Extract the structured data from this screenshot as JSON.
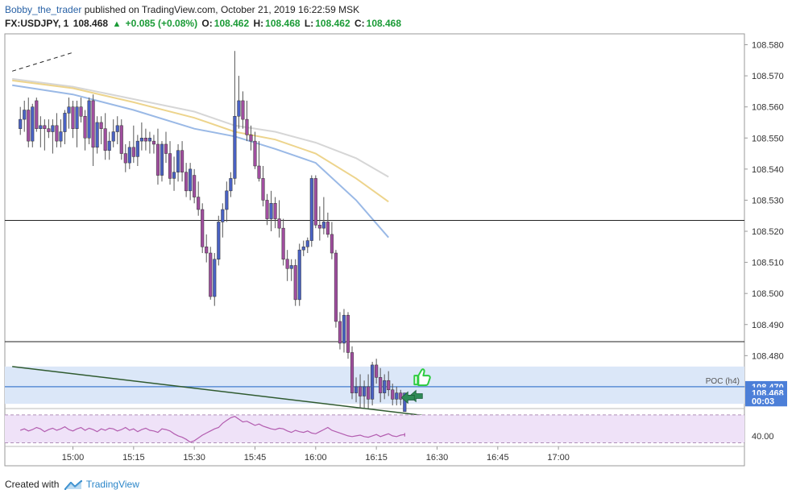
{
  "header": {
    "author": "Bobby_the_trader",
    "published_text": "published on TradingView.com, October 21, 2019 16:22:59 MSK",
    "symbol": "FX:USDJPY, 1",
    "price": "108.468",
    "change": "+0.085 (+0.08%)",
    "o_label": "O:",
    "o_value": "108.462",
    "h_label": "H:",
    "h_value": "108.468",
    "l_label": "L:",
    "l_value": "108.462",
    "c_label": "C:",
    "c_value": "108.468"
  },
  "footer": {
    "created_with": "Created with",
    "brand": "TradingView"
  },
  "colors": {
    "bull": "#4a62c4",
    "bear": "#a04e9f",
    "wick": "#555555",
    "ma_fast": "#9ab9e6",
    "ma_mid": "#edd48c",
    "ma_slow": "#d6d6d6",
    "zone": "#dbe7f8",
    "rsi_band": "#efe2f8",
    "rsi_line": "#b35db0",
    "trendline": "#2f5a2f",
    "price_label_bg": "#4c7fd8",
    "arrow": "#2e8b57",
    "thumb": "#2ecc40"
  },
  "chart_data": {
    "type": "candlestick",
    "price_axis": {
      "ylim": [
        108.4635,
        108.5835
      ],
      "ticks": [
        "108.580",
        "108.570",
        "108.560",
        "108.550",
        "108.540",
        "108.530",
        "108.520",
        "108.510",
        "108.500",
        "108.490",
        "108.480",
        "108.470"
      ]
    },
    "time_axis": {
      "ticks": [
        "15:00",
        "15:15",
        "15:30",
        "15:45",
        "16:00",
        "16:15",
        "16:30",
        "16:45",
        "17:00"
      ],
      "minutes_per_bar": 1
    },
    "candles": [
      {
        "time": "14:47",
        "o": 108.553,
        "h": 108.56,
        "l": 108.551,
        "c": 108.556
      },
      {
        "time": "14:48",
        "o": 108.556,
        "h": 108.562,
        "l": 108.552,
        "c": 108.559
      },
      {
        "time": "14:49",
        "o": 108.559,
        "h": 108.563,
        "l": 108.547,
        "c": 108.549
      },
      {
        "time": "14:50",
        "o": 108.549,
        "h": 108.561,
        "l": 108.547,
        "c": 108.56
      },
      {
        "time": "14:51",
        "o": 108.562,
        "h": 108.563,
        "l": 108.552,
        "c": 108.553
      },
      {
        "time": "14:52",
        "o": 108.553,
        "h": 108.557,
        "l": 108.547,
        "c": 108.554
      },
      {
        "time": "14:53",
        "o": 108.554,
        "h": 108.556,
        "l": 108.546,
        "c": 108.553
      },
      {
        "time": "14:54",
        "o": 108.553,
        "h": 108.556,
        "l": 108.55,
        "c": 108.552
      },
      {
        "time": "14:55",
        "o": 108.552,
        "h": 108.556,
        "l": 108.545,
        "c": 108.554
      },
      {
        "time": "14:56",
        "o": 108.554,
        "h": 108.558,
        "l": 108.547,
        "c": 108.549
      },
      {
        "time": "14:57",
        "o": 108.549,
        "h": 108.556,
        "l": 108.547,
        "c": 108.552
      },
      {
        "time": "14:58",
        "o": 108.552,
        "h": 108.559,
        "l": 108.548,
        "c": 108.558
      },
      {
        "time": "14:59",
        "o": 108.558,
        "h": 108.563,
        "l": 108.553,
        "c": 108.56
      },
      {
        "time": "15:00",
        "o": 108.56,
        "h": 108.562,
        "l": 108.55,
        "c": 108.553
      },
      {
        "time": "15:01",
        "o": 108.553,
        "h": 108.562,
        "l": 108.547,
        "c": 108.56
      },
      {
        "time": "15:02",
        "o": 108.56,
        "h": 108.563,
        "l": 108.555,
        "c": 108.557
      },
      {
        "time": "15:03",
        "o": 108.557,
        "h": 108.559,
        "l": 108.546,
        "c": 108.55
      },
      {
        "time": "15:04",
        "o": 108.55,
        "h": 108.563,
        "l": 108.548,
        "c": 108.562
      },
      {
        "time": "15:05",
        "o": 108.562,
        "h": 108.564,
        "l": 108.541,
        "c": 108.547
      },
      {
        "time": "15:06",
        "o": 108.547,
        "h": 108.557,
        "l": 108.545,
        "c": 108.555
      },
      {
        "time": "15:07",
        "o": 108.555,
        "h": 108.557,
        "l": 108.548,
        "c": 108.553
      },
      {
        "time": "15:08",
        "o": 108.553,
        "h": 108.558,
        "l": 108.543,
        "c": 108.546
      },
      {
        "time": "15:09",
        "o": 108.546,
        "h": 108.552,
        "l": 108.543,
        "c": 108.549
      },
      {
        "time": "15:10",
        "o": 108.549,
        "h": 108.556,
        "l": 108.547,
        "c": 108.552
      },
      {
        "time": "15:11",
        "o": 108.552,
        "h": 108.557,
        "l": 108.548,
        "c": 108.554
      },
      {
        "time": "15:12",
        "o": 108.554,
        "h": 108.556,
        "l": 108.543,
        "c": 108.545
      },
      {
        "time": "15:13",
        "o": 108.545,
        "h": 108.548,
        "l": 108.539,
        "c": 108.542
      },
      {
        "time": "15:14",
        "o": 108.542,
        "h": 108.549,
        "l": 108.54,
        "c": 108.547
      },
      {
        "time": "15:15",
        "o": 108.547,
        "h": 108.554,
        "l": 108.542,
        "c": 108.544
      },
      {
        "time": "15:16",
        "o": 108.544,
        "h": 108.551,
        "l": 108.541,
        "c": 108.549
      },
      {
        "time": "15:17",
        "o": 108.549,
        "h": 108.555,
        "l": 108.546,
        "c": 108.55
      },
      {
        "time": "15:18",
        "o": 108.55,
        "h": 108.553,
        "l": 108.546,
        "c": 108.549
      },
      {
        "time": "15:19",
        "o": 108.549,
        "h": 108.552,
        "l": 108.545,
        "c": 108.55
      },
      {
        "time": "15:20",
        "o": 108.549,
        "h": 108.551,
        "l": 108.545,
        "c": 108.548
      },
      {
        "time": "15:21",
        "o": 108.548,
        "h": 108.553,
        "l": 108.535,
        "c": 108.538
      },
      {
        "time": "15:22",
        "o": 108.538,
        "h": 108.549,
        "l": 108.536,
        "c": 108.548
      },
      {
        "time": "15:23",
        "o": 108.548,
        "h": 108.552,
        "l": 108.542,
        "c": 108.545
      },
      {
        "time": "15:24",
        "o": 108.545,
        "h": 108.549,
        "l": 108.535,
        "c": 108.537
      },
      {
        "time": "15:25",
        "o": 108.537,
        "h": 108.544,
        "l": 108.533,
        "c": 108.539
      },
      {
        "time": "15:26",
        "o": 108.539,
        "h": 108.548,
        "l": 108.536,
        "c": 108.546
      },
      {
        "time": "15:27",
        "o": 108.546,
        "h": 108.549,
        "l": 108.536,
        "c": 108.539
      },
      {
        "time": "15:28",
        "o": 108.539,
        "h": 108.542,
        "l": 108.531,
        "c": 108.533
      },
      {
        "time": "15:29",
        "o": 108.533,
        "h": 108.542,
        "l": 108.53,
        "c": 108.54
      },
      {
        "time": "15:30",
        "o": 108.538,
        "h": 108.54,
        "l": 108.529,
        "c": 108.531
      },
      {
        "time": "15:31",
        "o": 108.531,
        "h": 108.536,
        "l": 108.525,
        "c": 108.527
      },
      {
        "time": "15:32",
        "o": 108.527,
        "h": 108.529,
        "l": 108.513,
        "c": 108.515
      },
      {
        "time": "15:33",
        "o": 108.515,
        "h": 108.519,
        "l": 108.51,
        "c": 108.513
      },
      {
        "time": "15:34",
        "o": 108.513,
        "h": 108.515,
        "l": 108.498,
        "c": 108.499
      },
      {
        "time": "15:35",
        "o": 108.499,
        "h": 108.513,
        "l": 108.496,
        "c": 108.511
      },
      {
        "time": "15:36",
        "o": 108.511,
        "h": 108.525,
        "l": 108.509,
        "c": 108.523
      },
      {
        "time": "15:37",
        "o": 108.523,
        "h": 108.529,
        "l": 108.518,
        "c": 108.527
      },
      {
        "time": "15:38",
        "o": 108.527,
        "h": 108.536,
        "l": 108.523,
        "c": 108.533
      },
      {
        "time": "15:39",
        "o": 108.533,
        "h": 108.539,
        "l": 108.531,
        "c": 108.537
      },
      {
        "time": "15:40",
        "o": 108.537,
        "h": 108.578,
        "l": 108.535,
        "c": 108.557
      },
      {
        "time": "15:41",
        "o": 108.557,
        "h": 108.57,
        "l": 108.553,
        "c": 108.562
      },
      {
        "time": "15:42",
        "o": 108.562,
        "h": 108.565,
        "l": 108.553,
        "c": 108.556
      },
      {
        "time": "15:43",
        "o": 108.556,
        "h": 108.562,
        "l": 108.549,
        "c": 108.551
      },
      {
        "time": "15:44",
        "o": 108.551,
        "h": 108.554,
        "l": 108.546,
        "c": 108.549
      },
      {
        "time": "15:45",
        "o": 108.549,
        "h": 108.552,
        "l": 108.54,
        "c": 108.541
      },
      {
        "time": "15:46",
        "o": 108.541,
        "h": 108.549,
        "l": 108.536,
        "c": 108.537
      },
      {
        "time": "15:47",
        "o": 108.537,
        "h": 108.541,
        "l": 108.528,
        "c": 108.53
      },
      {
        "time": "15:48",
        "o": 108.53,
        "h": 108.532,
        "l": 108.522,
        "c": 108.524
      },
      {
        "time": "15:49",
        "o": 108.524,
        "h": 108.533,
        "l": 108.52,
        "c": 108.529
      },
      {
        "time": "15:50",
        "o": 108.529,
        "h": 108.531,
        "l": 108.521,
        "c": 108.524
      },
      {
        "time": "15:51",
        "o": 108.524,
        "h": 108.53,
        "l": 108.518,
        "c": 108.521
      },
      {
        "time": "15:52",
        "o": 108.521,
        "h": 108.524,
        "l": 108.509,
        "c": 108.511
      },
      {
        "time": "15:53",
        "o": 108.511,
        "h": 108.514,
        "l": 108.504,
        "c": 108.508
      },
      {
        "time": "15:54",
        "o": 108.508,
        "h": 108.511,
        "l": 108.504,
        "c": 108.509
      },
      {
        "time": "15:55",
        "o": 108.509,
        "h": 108.511,
        "l": 108.496,
        "c": 108.498
      },
      {
        "time": "15:56",
        "o": 108.498,
        "h": 108.516,
        "l": 108.496,
        "c": 108.514
      },
      {
        "time": "15:57",
        "o": 108.514,
        "h": 108.517,
        "l": 108.512,
        "c": 108.515
      },
      {
        "time": "15:58",
        "o": 108.515,
        "h": 108.518,
        "l": 108.513,
        "c": 108.517
      },
      {
        "time": "15:59",
        "o": 108.517,
        "h": 108.538,
        "l": 108.515,
        "c": 108.537
      },
      {
        "time": "16:00",
        "o": 108.537,
        "h": 108.538,
        "l": 108.521,
        "c": 108.522
      },
      {
        "time": "16:01",
        "o": 108.522,
        "h": 108.528,
        "l": 108.517,
        "c": 108.521
      },
      {
        "time": "16:02",
        "o": 108.521,
        "h": 108.531,
        "l": 108.519,
        "c": 108.523
      },
      {
        "time": "16:03",
        "o": 108.523,
        "h": 108.526,
        "l": 108.518,
        "c": 108.519
      },
      {
        "time": "16:04",
        "o": 108.519,
        "h": 108.523,
        "l": 108.511,
        "c": 108.513
      },
      {
        "time": "16:05",
        "o": 108.513,
        "h": 108.514,
        "l": 108.489,
        "c": 108.491
      },
      {
        "time": "16:06",
        "o": 108.491,
        "h": 108.494,
        "l": 108.482,
        "c": 108.484
      },
      {
        "time": "16:07",
        "o": 108.484,
        "h": 108.495,
        "l": 108.481,
        "c": 108.493
      },
      {
        "time": "16:08",
        "o": 108.493,
        "h": 108.494,
        "l": 108.479,
        "c": 108.481
      },
      {
        "time": "16:09",
        "o": 108.481,
        "h": 108.483,
        "l": 108.466,
        "c": 108.468
      },
      {
        "time": "16:10",
        "o": 108.468,
        "h": 108.473,
        "l": 108.465,
        "c": 108.47
      },
      {
        "time": "16:11",
        "o": 108.47,
        "h": 108.474,
        "l": 108.463,
        "c": 108.467
      },
      {
        "time": "16:12",
        "o": 108.467,
        "h": 108.472,
        "l": 108.463,
        "c": 108.47
      },
      {
        "time": "16:13",
        "o": 108.47,
        "h": 108.474,
        "l": 108.463,
        "c": 108.466
      },
      {
        "time": "16:14",
        "o": 108.466,
        "h": 108.478,
        "l": 108.464,
        "c": 108.477
      },
      {
        "time": "16:15",
        "o": 108.477,
        "h": 108.479,
        "l": 108.471,
        "c": 108.473
      },
      {
        "time": "16:16",
        "o": 108.473,
        "h": 108.476,
        "l": 108.465,
        "c": 108.468
      },
      {
        "time": "16:17",
        "o": 108.468,
        "h": 108.474,
        "l": 108.466,
        "c": 108.472
      },
      {
        "time": "16:18",
        "o": 108.472,
        "h": 108.475,
        "l": 108.467,
        "c": 108.469
      },
      {
        "time": "16:19",
        "o": 108.469,
        "h": 108.471,
        "l": 108.464,
        "c": 108.466
      },
      {
        "time": "16:20",
        "o": 108.466,
        "h": 108.47,
        "l": 108.464,
        "c": 108.468
      },
      {
        "time": "16:21",
        "o": 108.468,
        "h": 108.469,
        "l": 108.464,
        "c": 108.466
      },
      {
        "time": "16:22",
        "o": 108.462,
        "h": 108.468,
        "l": 108.462,
        "c": 108.468
      }
    ],
    "moving_averages": [
      {
        "color_key": "ma_slow",
        "points": [
          {
            "time": "14:45",
            "v": 108.569
          },
          {
            "time": "15:00",
            "v": 108.5665
          },
          {
            "time": "15:15",
            "v": 108.5625
          },
          {
            "time": "15:30",
            "v": 108.5585
          },
          {
            "time": "15:40",
            "v": 108.554
          },
          {
            "time": "15:50",
            "v": 108.552
          },
          {
            "time": "16:00",
            "v": 108.5485
          },
          {
            "time": "16:10",
            "v": 108.5435
          },
          {
            "time": "16:18",
            "v": 108.5375
          }
        ]
      },
      {
        "color_key": "ma_mid",
        "points": [
          {
            "time": "14:45",
            "v": 108.5685
          },
          {
            "time": "15:00",
            "v": 108.566
          },
          {
            "time": "15:15",
            "v": 108.5615
          },
          {
            "time": "15:30",
            "v": 108.5565
          },
          {
            "time": "15:40",
            "v": 108.552
          },
          {
            "time": "15:50",
            "v": 108.5495
          },
          {
            "time": "16:00",
            "v": 108.545
          },
          {
            "time": "16:10",
            "v": 108.537
          },
          {
            "time": "16:18",
            "v": 108.5295
          }
        ]
      },
      {
        "color_key": "ma_fast",
        "points": [
          {
            "time": "14:45",
            "v": 108.567
          },
          {
            "time": "15:00",
            "v": 108.564
          },
          {
            "time": "15:15",
            "v": 108.559
          },
          {
            "time": "15:30",
            "v": 108.553
          },
          {
            "time": "15:40",
            "v": 108.5505
          },
          {
            "time": "15:50",
            "v": 108.5465
          },
          {
            "time": "16:00",
            "v": 108.542
          },
          {
            "time": "16:10",
            "v": 108.53
          },
          {
            "time": "16:18",
            "v": 108.518
          }
        ]
      }
    ],
    "levels": [
      {
        "name": "resistance",
        "price": 108.5235,
        "style": "solid"
      },
      {
        "name": "support",
        "price": 108.4845,
        "style": "solid"
      },
      {
        "name": "poc",
        "price": 108.47,
        "style": "solid",
        "label": "POC (h4)"
      }
    ],
    "zone": {
      "top": 108.4765,
      "bottom": 108.4645
    },
    "trendlines": [
      {
        "name": "upper-dashed",
        "style": "dashed",
        "from": {
          "time": "14:45",
          "v": 108.5715
        },
        "to": {
          "time": "15:00",
          "v": 108.5775
        }
      },
      {
        "name": "lower-trend",
        "style": "solid",
        "from": {
          "time": "14:45",
          "v": 108.4765
        },
        "to": {
          "time": "17:07",
          "v": 108.4545
        }
      }
    ],
    "price_labels": [
      {
        "price": 108.47,
        "text": "108.470",
        "color_key": "price_label_bg"
      },
      {
        "price": 108.468,
        "text": "108.468",
        "color_key": "price_label_bg"
      },
      {
        "price": 108.4655,
        "text": "00:03",
        "color_key": "price_label_bg"
      }
    ],
    "rsi": {
      "ticks": [
        "40.00"
      ],
      "band": [
        30,
        70
      ],
      "ylim": [
        26,
        78
      ],
      "values": [
        48,
        50,
        47,
        49,
        52,
        50,
        46,
        49,
        51,
        48,
        50,
        53,
        49,
        47,
        50,
        52,
        48,
        51,
        49,
        46,
        50,
        48,
        51,
        50,
        47,
        49,
        52,
        48,
        50,
        46,
        49,
        51,
        48,
        47,
        45,
        50,
        49,
        47,
        43,
        40,
        38,
        35,
        31,
        33,
        37,
        41,
        44,
        47,
        50,
        52,
        58,
        62,
        66,
        68,
        64,
        60,
        61,
        58,
        55,
        57,
        54,
        52,
        50,
        49,
        51,
        50,
        47,
        45,
        48,
        46,
        45,
        47,
        44,
        43,
        46,
        49,
        52,
        48,
        46,
        44,
        42,
        40,
        39,
        40,
        41,
        39,
        38,
        40,
        42,
        39,
        41,
        43,
        40,
        39,
        41,
        42,
        40,
        39,
        42,
        44
      ]
    },
    "annotations": [
      {
        "type": "arrow",
        "time": "16:22",
        "price": 108.467,
        "direction": "left"
      },
      {
        "type": "arrow",
        "time": "16:20",
        "price": 108.4665,
        "direction": "left"
      },
      {
        "type": "thumbs-up",
        "time": "16:24",
        "price": 108.471
      }
    ]
  }
}
